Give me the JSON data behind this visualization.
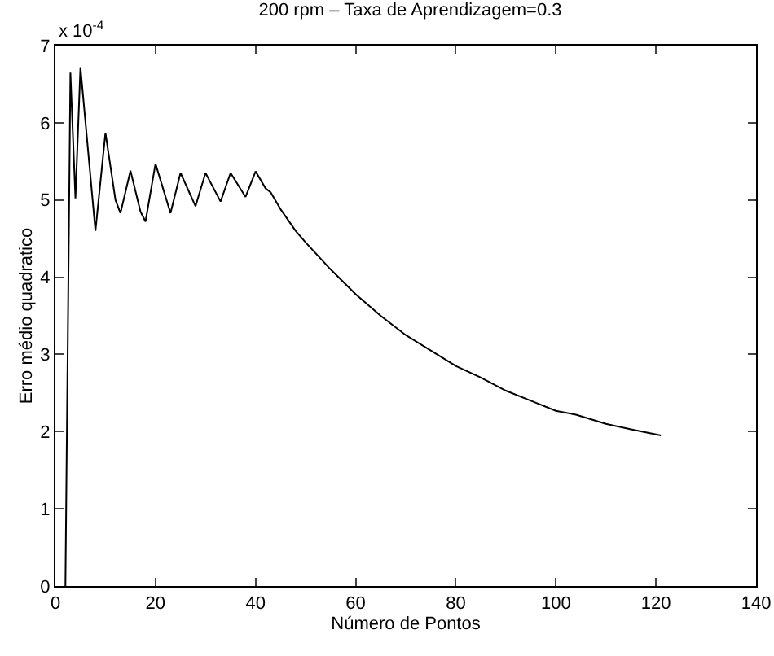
{
  "chart_data": {
    "type": "line",
    "title": "200 rpm – Taxa de Aprendizagem=0.3",
    "xlabel": "Número de Pontos",
    "ylabel": "Erro médio quadratico",
    "annotations": [
      "x 10$^{-4}$"
    ],
    "x": [
      2,
      3,
      4,
      5,
      8,
      10,
      12,
      13,
      15,
      17,
      18,
      20,
      23,
      25,
      28,
      30,
      33,
      35,
      38,
      40,
      42,
      43,
      45,
      48,
      50,
      55,
      60,
      65,
      70,
      75,
      80,
      85,
      90,
      95,
      100,
      104,
      110,
      115,
      121
    ],
    "series": [
      {
        "color": "#000000",
        "values": [
          0,
          6.65,
          5.02,
          6.72,
          4.6,
          5.87,
          5.0,
          4.83,
          5.38,
          4.85,
          4.72,
          5.47,
          4.83,
          5.35,
          4.92,
          5.35,
          4.98,
          5.35,
          5.04,
          5.37,
          5.15,
          5.1,
          4.88,
          4.6,
          4.45,
          4.1,
          3.78,
          3.5,
          3.25,
          3.05,
          2.85,
          2.7,
          2.53,
          2.4,
          2.27,
          2.22,
          2.1,
          2.03,
          1.95
        ]
      }
    ],
    "xlim": [
      0,
      140
    ],
    "xticks": [
      0,
      20,
      40,
      60,
      80,
      100,
      120,
      140
    ],
    "ylim": [
      0,
      7
    ],
    "yticks": [
      0,
      1,
      2,
      3,
      4,
      5,
      6,
      7
    ],
    "marker": "none",
    "line_style": "solid"
  }
}
